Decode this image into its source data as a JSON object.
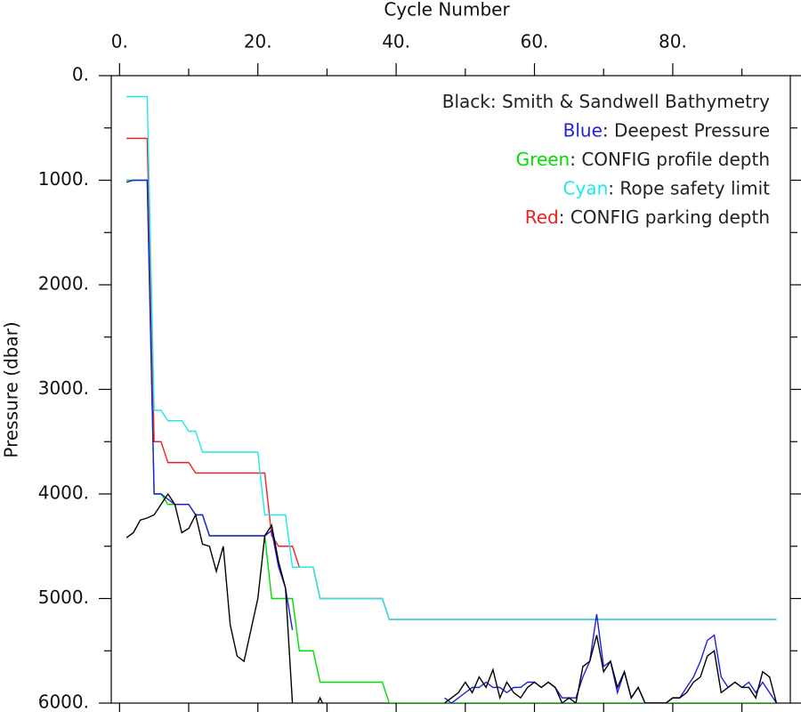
{
  "chart_data": {
    "type": "line",
    "xlabel": "Cycle Number",
    "ylabel": "Pressure (dbar)",
    "x": [
      1,
      2,
      3,
      4,
      5,
      6,
      7,
      8,
      9,
      10,
      11,
      12,
      13,
      14,
      15,
      16,
      17,
      18,
      19,
      20,
      21,
      22,
      23,
      24,
      25,
      26,
      27,
      28,
      29,
      30,
      31,
      32,
      33,
      34,
      35,
      36,
      37,
      38,
      39,
      40,
      41,
      42,
      43,
      44,
      45,
      46,
      47,
      48,
      49,
      50,
      51,
      52,
      53,
      54,
      55,
      56,
      57,
      58,
      59,
      60,
      61,
      62,
      63,
      64,
      65,
      66,
      67,
      68,
      69,
      70,
      71,
      72,
      73,
      74,
      75,
      76,
      77,
      78,
      79,
      80,
      81,
      82,
      83,
      84,
      85,
      86,
      87,
      88,
      89,
      90,
      91,
      92,
      93,
      94,
      95
    ],
    "xlim": [
      -1.2,
      97
    ],
    "xticks": [
      {
        "value": 0,
        "label": "0."
      },
      {
        "value": 20,
        "label": "20."
      },
      {
        "value": 40,
        "label": "40."
      },
      {
        "value": 60,
        "label": "60."
      },
      {
        "value": 80,
        "label": "80."
      }
    ],
    "xminorticks": [
      10,
      30,
      50,
      70,
      90
    ],
    "ylim": [
      6000,
      0
    ],
    "yticks": [
      {
        "value": 0,
        "label": "0."
      },
      {
        "value": 1000,
        "label": "1000."
      },
      {
        "value": 2000,
        "label": "2000."
      },
      {
        "value": 3000,
        "label": "3000."
      },
      {
        "value": 4000,
        "label": "4000."
      },
      {
        "value": 5000,
        "label": "5000."
      },
      {
        "value": 6000,
        "label": "6000."
      }
    ],
    "yminorticks": [
      500,
      1500,
      2500,
      3500,
      4500,
      5500
    ],
    "series": [
      {
        "name": "Black",
        "label": ": Smith & Sandwell Bathymetry",
        "color": "#000000",
        "values": [
          4420,
          4370,
          4250,
          4230,
          4200,
          4100,
          4000,
          4100,
          4370,
          4330,
          4200,
          4480,
          4500,
          4740,
          4500,
          5250,
          5550,
          5600,
          5300,
          5000,
          4400,
          4300,
          4650,
          4900,
          6000,
          6300,
          null,
          6100,
          5950,
          6100,
          null,
          null,
          null,
          null,
          null,
          null,
          null,
          null,
          null,
          null,
          null,
          null,
          null,
          null,
          null,
          null,
          6000,
          5950,
          5900,
          5800,
          5900,
          5750,
          5850,
          5680,
          5950,
          5800,
          5900,
          5950,
          5850,
          5800,
          5850,
          5800,
          5850,
          6000,
          5950,
          6000,
          5650,
          5600,
          5350,
          5700,
          5600,
          5850,
          5700,
          5950,
          5850,
          6000,
          6000,
          6000,
          6000,
          5950,
          5950,
          5900,
          5800,
          5750,
          5550,
          5500,
          5900,
          5850,
          5800,
          5850,
          5850,
          5950,
          5700,
          5750,
          6000
        ]
      },
      {
        "name": "Blue",
        "label": ": Deepest Pressure",
        "color": "#2020dd",
        "values": [
          1020,
          1000,
          1000,
          1000,
          4000,
          4000,
          4050,
          4100,
          4100,
          4100,
          4200,
          4200,
          4400,
          4400,
          4400,
          4400,
          4400,
          4400,
          4400,
          4400,
          4400,
          4350,
          4700,
          4900,
          5300,
          null,
          null,
          null,
          null,
          null,
          null,
          null,
          null,
          null,
          null,
          null,
          null,
          null,
          null,
          null,
          null,
          null,
          null,
          null,
          null,
          null,
          5950,
          6000,
          5950,
          5900,
          5850,
          5850,
          5800,
          5850,
          5850,
          5900,
          5850,
          5850,
          5800,
          5800,
          5850,
          5800,
          5850,
          5950,
          5950,
          5950,
          5750,
          5600,
          5150,
          5650,
          5600,
          5900,
          5700,
          5950,
          5850,
          6000,
          6000,
          6000,
          6000,
          5950,
          5950,
          5850,
          5750,
          5600,
          5400,
          5350,
          5750,
          5850,
          5800,
          5850,
          5800,
          5900,
          5800,
          5900,
          6000
        ]
      },
      {
        "name": "Green",
        "label": ": CONFIG profile depth",
        "color": "#00dd00",
        "values": [
          1000,
          1000,
          1000,
          1000,
          4000,
          4000,
          4100,
          4100,
          4100,
          4100,
          4200,
          4200,
          4400,
          4400,
          4400,
          4400,
          4400,
          4400,
          4400,
          4400,
          4400,
          5000,
          5000,
          5000,
          5000,
          5500,
          5500,
          5500,
          5800,
          5800,
          5800,
          5800,
          5800,
          5800,
          5800,
          5800,
          5800,
          5800,
          6000,
          6000,
          6000,
          6000,
          6000,
          6000,
          6000,
          6000,
          6000,
          6000,
          6000,
          6000,
          6000,
          6000,
          6000,
          6000,
          6000,
          6000,
          6000,
          6000,
          6000,
          6000,
          6000,
          6000,
          6000,
          6000,
          6000,
          6000,
          6000,
          6000,
          6000,
          6000,
          6000,
          6000,
          6000,
          6000,
          6000,
          6000,
          6000,
          6000,
          6000,
          6000,
          6000,
          6000,
          6000,
          6000,
          6000,
          6000,
          6000,
          6000,
          6000,
          6000,
          6000,
          6000,
          6000,
          6000,
          6000
        ]
      },
      {
        "name": "Cyan",
        "label": ": Rope safety limit",
        "color": "#22e8e8",
        "values": [
          200,
          200,
          200,
          200,
          3200,
          3200,
          3300,
          3300,
          3300,
          3400,
          3400,
          3600,
          3600,
          3600,
          3600,
          3600,
          3600,
          3600,
          3600,
          3600,
          4200,
          4200,
          4200,
          4200,
          4700,
          4700,
          4700,
          4700,
          5000,
          5000,
          5000,
          5000,
          5000,
          5000,
          5000,
          5000,
          5000,
          5000,
          5200,
          5200,
          5200,
          5200,
          5200,
          5200,
          5200,
          5200,
          5200,
          5200,
          5200,
          5200,
          5200,
          5200,
          5200,
          5200,
          5200,
          5200,
          5200,
          5200,
          5200,
          5200,
          5200,
          5200,
          5200,
          5200,
          5200,
          5200,
          5200,
          5200,
          5200,
          5200,
          5200,
          5200,
          5200,
          5200,
          5200,
          5200,
          5200,
          5200,
          5200,
          5200,
          5200,
          5200,
          5200,
          5200,
          5200,
          5200,
          5200,
          5200,
          5200,
          5200,
          5200,
          5200,
          5200,
          5200,
          5200
        ]
      },
      {
        "name": "Red",
        "label": ": CONFIG parking depth",
        "color": "#ee2222",
        "values": [
          600,
          600,
          600,
          600,
          3500,
          3500,
          3700,
          3700,
          3700,
          3700,
          3800,
          3800,
          3800,
          3800,
          3800,
          3800,
          3800,
          3800,
          3800,
          3800,
          3800,
          4400,
          4500,
          4500,
          4500,
          4700,
          4700,
          4700,
          5000,
          5000,
          5000,
          5000,
          5000,
          5000,
          5000,
          5000,
          5000,
          5000,
          5200,
          5200,
          5200,
          5200,
          5200,
          5200,
          5200,
          5200,
          5200,
          5200,
          5200,
          5200,
          5200,
          5200,
          5200,
          5200,
          5200,
          5200,
          5200,
          5200,
          5200,
          5200,
          5200,
          5200,
          5200,
          5200,
          5200,
          5200,
          5200,
          5200,
          5200,
          5200,
          5200,
          5200,
          5200,
          5200,
          5200,
          5200,
          5200,
          5200,
          5200,
          5200,
          5200,
          5200,
          5200,
          5200,
          5200,
          5200,
          5200,
          5200,
          5200,
          5200,
          5200,
          5200,
          5200,
          5200,
          5200
        ]
      }
    ]
  }
}
